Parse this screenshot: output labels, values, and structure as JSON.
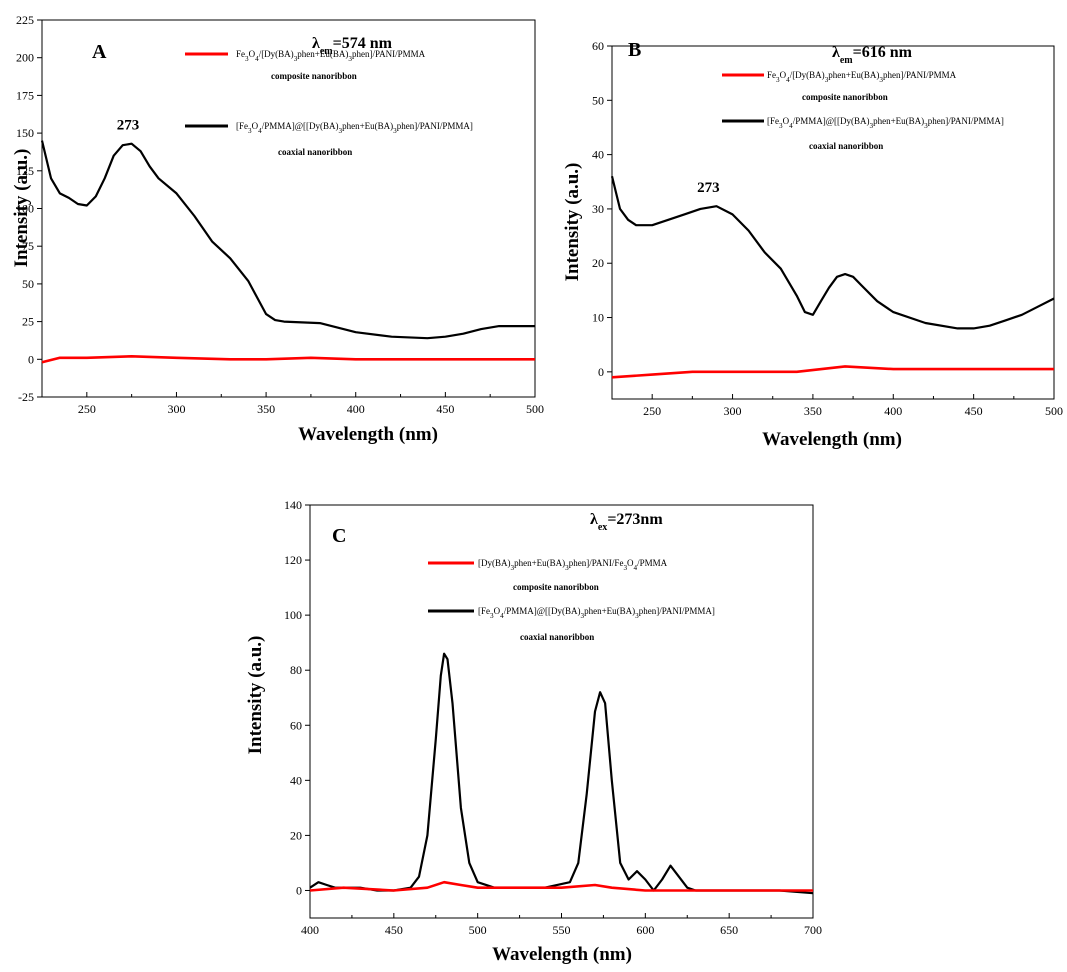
{
  "chart_data": [
    {
      "type": "line",
      "panel_label": "A",
      "annotation_main": "λ",
      "annotation_sub": "em",
      "annotation_rest": "=574 nm",
      "peak_label": "273",
      "xlabel": "Wavelength (nm)",
      "ylabel": "Intensity (a.u.)",
      "xlim": [
        225,
        500
      ],
      "ylim": [
        -25,
        225
      ],
      "xticks": [
        250,
        300,
        350,
        400,
        450,
        500
      ],
      "yticks": [
        -25,
        0,
        25,
        50,
        75,
        100,
        125,
        150,
        175,
        200,
        225
      ],
      "colors": {
        "composite": "#ff0000",
        "coaxial": "#000000"
      },
      "legend": {
        "composite_line1": "Fe3O4/[Dy(BA)3phen+Eu(BA)3phen]/PANI/PMMA",
        "composite_line2": "composite nanoribbon",
        "coaxial_line1": "[Fe3O4/PMMA]@[[Dy(BA)3phen+Eu(BA)3phen]/PANI/PMMA]",
        "coaxial_line2": "coaxial nanoribbon"
      },
      "series": [
        {
          "name": "coaxial",
          "x": [
            225,
            230,
            235,
            240,
            245,
            250,
            255,
            260,
            265,
            270,
            275,
            280,
            285,
            290,
            300,
            310,
            320,
            330,
            340,
            350,
            355,
            360,
            380,
            400,
            420,
            440,
            450,
            460,
            470,
            480,
            500
          ],
          "y": [
            145,
            120,
            110,
            107,
            103,
            102,
            108,
            120,
            135,
            142,
            143,
            138,
            128,
            120,
            110,
            95,
            78,
            67,
            52,
            30,
            26,
            25,
            24,
            18,
            15,
            14,
            15,
            17,
            20,
            22,
            22
          ]
        },
        {
          "name": "composite",
          "x": [
            225,
            235,
            250,
            275,
            300,
            330,
            350,
            375,
            400,
            450,
            500
          ],
          "y": [
            -2,
            1,
            1,
            2,
            1,
            0,
            0,
            1,
            0,
            0,
            0
          ]
        }
      ]
    },
    {
      "type": "line",
      "panel_label": "B",
      "annotation_main": "λ",
      "annotation_sub": "em",
      "annotation_rest": "=616 nm",
      "peak_label": "273",
      "xlabel": "Wavelength (nm)",
      "ylabel": "Intensity (a.u.)",
      "xlim": [
        225,
        500
      ],
      "ylim": [
        -5,
        60
      ],
      "xticks": [
        250,
        300,
        350,
        400,
        450,
        500
      ],
      "yticks": [
        0,
        10,
        20,
        30,
        40,
        50,
        60
      ],
      "colors": {
        "composite": "#ff0000",
        "coaxial": "#000000"
      },
      "legend": {
        "composite_line1": "Fe3O4/[Dy(BA)3phen+Eu(BA)3phen]/PANI/PMMA",
        "composite_line2": "composite nanoribbon",
        "coaxial_line1": "[Fe3O4/PMMA]@[[Dy(BA)3phen+Eu(BA)3phen]/PANI/PMMA]",
        "coaxial_line2": "coaxial nanoribbon"
      },
      "series": [
        {
          "name": "coaxial",
          "x": [
            225,
            230,
            235,
            240,
            245,
            250,
            260,
            270,
            280,
            290,
            300,
            310,
            320,
            330,
            340,
            345,
            350,
            355,
            360,
            365,
            370,
            375,
            380,
            390,
            400,
            420,
            440,
            450,
            460,
            470,
            480,
            490,
            500
          ],
          "y": [
            36,
            30,
            28,
            27,
            27,
            27,
            28,
            29,
            30,
            30.5,
            29,
            26,
            22,
            19,
            14,
            11,
            10.5,
            13,
            15.5,
            17.5,
            18,
            17.5,
            16,
            13,
            11,
            9,
            8,
            8,
            8.5,
            9.5,
            10.5,
            12,
            13.5
          ]
        },
        {
          "name": "composite",
          "x": [
            225,
            250,
            275,
            300,
            340,
            370,
            400,
            450,
            500
          ],
          "y": [
            -1,
            -0.5,
            0,
            0,
            0,
            1,
            0.5,
            0.5,
            0.5
          ]
        }
      ]
    },
    {
      "type": "line",
      "panel_label": "C",
      "annotation_main": "λ",
      "annotation_sub": "ex",
      "annotation_rest": "=273nm",
      "xlabel": "Wavelength (nm)",
      "ylabel": "Intensity (a.u.)",
      "xlim": [
        400,
        700
      ],
      "ylim": [
        -10,
        140
      ],
      "xticks": [
        400,
        450,
        500,
        550,
        600,
        650,
        700
      ],
      "yticks": [
        0,
        20,
        40,
        60,
        80,
        100,
        120,
        140
      ],
      "colors": {
        "composite": "#ff0000",
        "coaxial": "#000000"
      },
      "legend": {
        "composite_line1": "[Dy(BA)3phen+Eu(BA)3phen]/PANI/Fe3O4/PMMA",
        "composite_line2": "composite nanoribbon",
        "coaxial_line1": "[Fe3O4/PMMA]@[[Dy(BA)3phen+Eu(BA)3phen]/PANI/PMMA]",
        "coaxial_line2": "coaxial nanoribbon"
      },
      "series": [
        {
          "name": "coaxial",
          "x": [
            400,
            405,
            410,
            415,
            420,
            430,
            440,
            450,
            460,
            465,
            470,
            475,
            478,
            480,
            482,
            485,
            490,
            495,
            500,
            510,
            520,
            540,
            555,
            560,
            565,
            570,
            573,
            576,
            580,
            585,
            590,
            595,
            600,
            605,
            610,
            615,
            620,
            625,
            630,
            650,
            680,
            700
          ],
          "y": [
            1,
            3,
            2,
            1,
            1,
            1,
            0,
            0,
            1,
            5,
            20,
            55,
            78,
            86,
            84,
            68,
            30,
            10,
            3,
            1,
            1,
            1,
            3,
            10,
            35,
            65,
            72,
            68,
            40,
            10,
            4,
            7,
            4,
            0,
            4,
            9,
            5,
            1,
            0,
            0,
            0,
            -1
          ]
        },
        {
          "name": "composite",
          "x": [
            400,
            420,
            450,
            470,
            480,
            490,
            500,
            550,
            570,
            580,
            600,
            650,
            700
          ],
          "y": [
            0,
            1,
            0,
            1,
            3,
            2,
            1,
            1,
            2,
            1,
            0,
            0,
            0
          ]
        }
      ]
    }
  ]
}
